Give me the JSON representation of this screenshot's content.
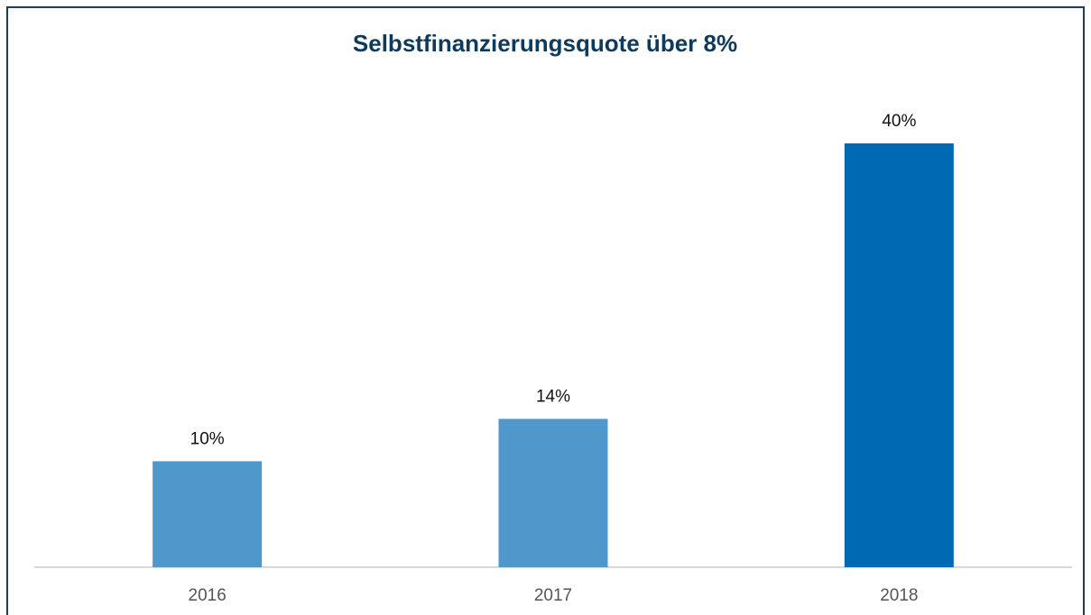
{
  "chart_data": {
    "type": "bar",
    "title": "Selbstfinanzierungsquote über 8%",
    "categories": [
      "2016",
      "2017",
      "2018"
    ],
    "values": [
      10,
      14,
      40
    ],
    "value_labels": [
      "10%",
      "14%",
      "40%"
    ],
    "colors": [
      "#5097cb",
      "#5097cb",
      "#0069b4"
    ]
  }
}
